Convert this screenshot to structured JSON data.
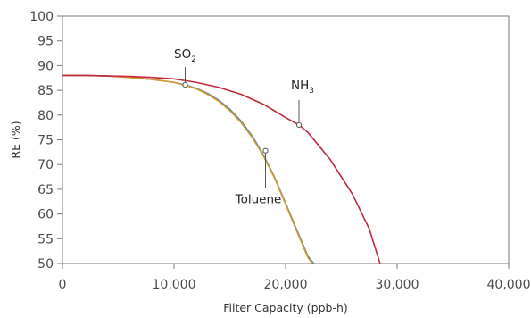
{
  "chart_data": {
    "type": "line",
    "title": "",
    "xlabel": "Filter Capacity (ppb-h)",
    "ylabel": "RE (%)",
    "xlim": [
      0,
      40000
    ],
    "ylim": [
      50,
      100
    ],
    "grid": false,
    "legend": "none",
    "x_ticks": [
      0,
      10000,
      20000,
      30000,
      40000
    ],
    "x_tick_labels": [
      "0",
      "10,000",
      "20,000",
      "30,000",
      "40,000"
    ],
    "y_ticks": [
      50,
      55,
      60,
      65,
      70,
      75,
      80,
      85,
      90,
      95,
      100
    ],
    "y_tick_labels": [
      "50",
      "55",
      "60",
      "65",
      "70",
      "75",
      "80",
      "85",
      "90",
      "95",
      "100"
    ],
    "series": [
      {
        "name": "SO₂",
        "color": "#5b86a8",
        "x": [
          0,
          2000,
          4000,
          6000,
          8000,
          10000,
          11000,
          12000,
          13000,
          14000,
          15000,
          16000,
          17000,
          18000,
          19000,
          20000,
          21000,
          22000,
          22700
        ],
        "y": [
          88,
          88,
          87.9,
          87.6,
          87.2,
          86.6,
          86.1,
          85.4,
          84.4,
          83.0,
          81.2,
          78.8,
          75.8,
          72.0,
          67.5,
          62.2,
          56.8,
          51.5,
          49.5
        ]
      },
      {
        "name": "Toluene",
        "color": "#d49a2a",
        "x": [
          0,
          2000,
          4000,
          6000,
          8000,
          10000,
          11000,
          12000,
          13000,
          14000,
          15000,
          16000,
          17000,
          18000,
          19000,
          20000,
          21000,
          22000,
          22600
        ],
        "y": [
          88,
          88,
          87.9,
          87.6,
          87.2,
          86.6,
          86.0,
          85.3,
          84.2,
          82.8,
          80.9,
          78.5,
          75.5,
          71.8,
          67.3,
          62.0,
          56.5,
          51.2,
          49.5
        ]
      },
      {
        "name": "NH₃",
        "color": "#c0293b",
        "x": [
          0,
          2000,
          4000,
          6000,
          8000,
          10000,
          12000,
          14000,
          16000,
          18000,
          20000,
          21200,
          22000,
          24000,
          26000,
          27500,
          28500
        ],
        "y": [
          88,
          88,
          87.9,
          87.8,
          87.6,
          87.3,
          86.6,
          85.6,
          84.2,
          82.2,
          79.5,
          78.0,
          76.5,
          71.0,
          64.0,
          57.0,
          49.8
        ]
      }
    ],
    "annotations": [
      {
        "text": "SO",
        "subscript": "2",
        "series": "SO₂",
        "x": 11000,
        "y": 86.1
      },
      {
        "text": "NH",
        "subscript": "3",
        "series": "NH₃",
        "x": 21200,
        "y": 78.0
      },
      {
        "text": "Toluene",
        "subscript": "",
        "series": "Toluene",
        "x": 18200,
        "y": 72.8
      }
    ]
  }
}
